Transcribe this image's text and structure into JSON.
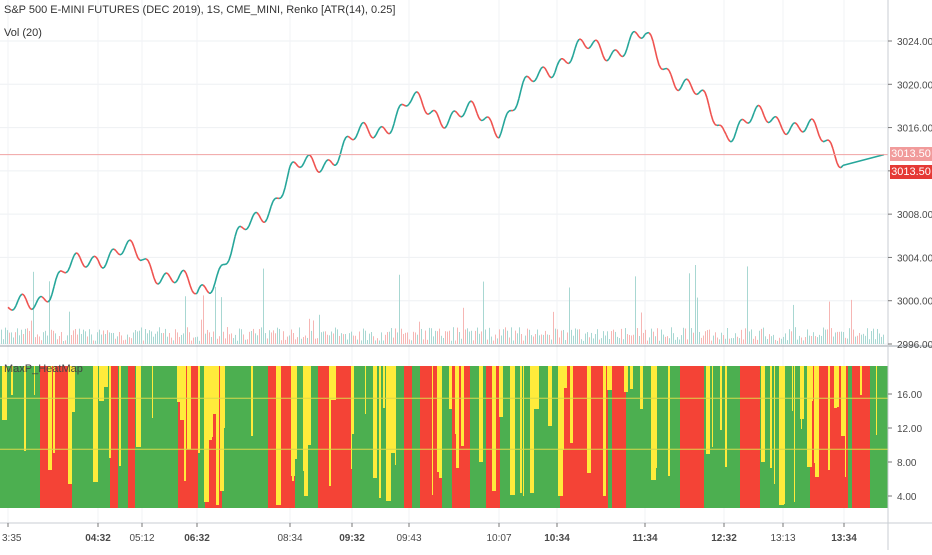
{
  "header": {
    "title": "S&P 500 E-MINI FUTURES (DEC 2019), 1S, CME_MINI, Renko [ATR(14), 0.25]",
    "volume_label": "Vol (20)"
  },
  "indicator": {
    "name": "MaxP_HeatMap"
  },
  "price_axis": {
    "ticks": [
      "3024.00",
      "3020.00",
      "3016.00",
      "3012.00",
      "3008.00",
      "3004.00",
      "3000.00",
      "2996.00"
    ],
    "last_price": "3013.50",
    "last_price_bid": "3013.50"
  },
  "indicator_axis": {
    "ticks": [
      "16.00",
      "12.00",
      "8.00",
      "4.00"
    ]
  },
  "time_axis": {
    "ticks": [
      "3:35",
      "04:32",
      "05:12",
      "06:32",
      "08:34",
      "09:32",
      "09:43",
      "10:07",
      "10:34",
      "11:34",
      "12:32",
      "13:13",
      "13:34"
    ]
  },
  "colors": {
    "up": "#26a69a",
    "down": "#ef5350",
    "heat_green": "#4caf50",
    "heat_red": "#f44336",
    "heat_yellow": "#ffeb3b",
    "price_line": "#f0a3a3",
    "label_pink": "#f19b9b",
    "label_red": "#e53935"
  },
  "chart_data": [
    {
      "type": "line",
      "title": "S&P 500 E-MINI FUTURES (DEC 2019), 1S, CME_MINI, Renko [ATR(14), 0.25]",
      "x": [
        "3:35",
        "04:32",
        "05:12",
        "06:32",
        "08:34",
        "09:32",
        "09:43",
        "10:07",
        "10:34",
        "11:34",
        "12:32",
        "13:13",
        "13:34"
      ],
      "series": [
        {
          "values": [
            2998.5,
            3004.5,
            3004.0,
            3000.5,
            3011.5,
            3014.5,
            3018.0,
            3016.5,
            3022.5,
            3024.0,
            3016.0,
            3017.0,
            3013.5
          ]
        }
      ],
      "ylim": [
        2996,
        3026
      ]
    },
    {
      "type": "heatmap",
      "title": "MaxP_HeatMap",
      "x": [
        "3:35",
        "04:32",
        "05:12",
        "06:32",
        "08:34",
        "09:32",
        "09:43",
        "10:07",
        "10:34",
        "11:34",
        "12:32",
        "13:13",
        "13:34"
      ],
      "ylim": [
        2,
        18
      ]
    }
  ]
}
